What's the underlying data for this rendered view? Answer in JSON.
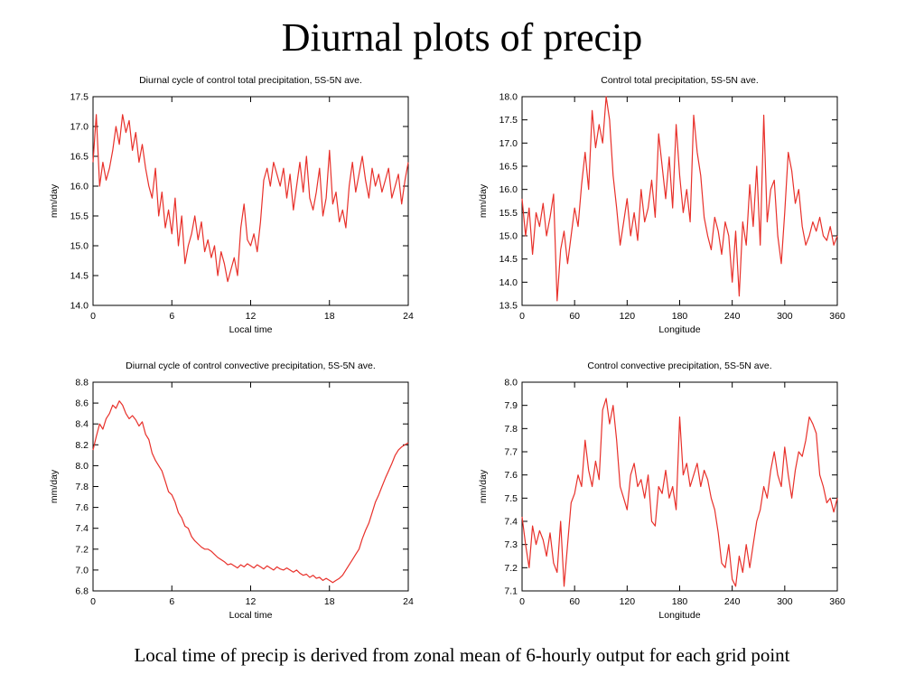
{
  "slide": {
    "title": "Diurnal plots of precip",
    "caption": "Local time of precip is derived from zonal mean of  6-hourly output for each grid point"
  },
  "colors": {
    "series": "#e8302a",
    "axis": "#000000"
  },
  "chart_data": [
    {
      "type": "line",
      "title": "Diurnal cycle of control total precipitation, 5S-5N ave.",
      "xlabel": "Local time",
      "ylabel": "mm/day",
      "xlim": [
        0,
        24
      ],
      "ylim": [
        14.0,
        17.5
      ],
      "xticks": [
        "0",
        "6",
        "12",
        "18",
        "24"
      ],
      "yticks": [
        "14.0",
        "14.5",
        "15.0",
        "15.5",
        "16.0",
        "16.5",
        "17.0",
        "17.5"
      ],
      "grid": false,
      "x": [
        0,
        0.25,
        0.5,
        0.75,
        1,
        1.25,
        1.5,
        1.75,
        2,
        2.25,
        2.5,
        2.75,
        3,
        3.25,
        3.5,
        3.75,
        4,
        4.25,
        4.5,
        4.75,
        5,
        5.25,
        5.5,
        5.75,
        6,
        6.25,
        6.5,
        6.75,
        7,
        7.25,
        7.5,
        7.75,
        8,
        8.25,
        8.5,
        8.75,
        9,
        9.25,
        9.5,
        9.75,
        10,
        10.25,
        10.5,
        10.75,
        11,
        11.25,
        11.5,
        11.75,
        12,
        12.25,
        12.5,
        12.75,
        13,
        13.25,
        13.5,
        13.75,
        14,
        14.25,
        14.5,
        14.75,
        15,
        15.25,
        15.5,
        15.75,
        16,
        16.25,
        16.5,
        16.75,
        17,
        17.25,
        17.5,
        17.75,
        18,
        18.25,
        18.5,
        18.75,
        19,
        19.25,
        19.5,
        19.75,
        20,
        20.25,
        20.5,
        20.75,
        21,
        21.25,
        21.5,
        21.75,
        22,
        22.25,
        22.5,
        22.75,
        23,
        23.25,
        23.5,
        23.75,
        24
      ],
      "values": [
        16.4,
        17.2,
        16.0,
        16.4,
        16.1,
        16.3,
        16.6,
        17.0,
        16.7,
        17.2,
        16.9,
        17.1,
        16.6,
        16.9,
        16.4,
        16.7,
        16.3,
        16.0,
        15.8,
        16.3,
        15.5,
        15.9,
        15.3,
        15.6,
        15.2,
        15.8,
        15.0,
        15.5,
        14.7,
        15.0,
        15.2,
        15.5,
        15.1,
        15.4,
        14.9,
        15.1,
        14.8,
        15.0,
        14.5,
        14.9,
        14.7,
        14.4,
        14.6,
        14.8,
        14.5,
        15.3,
        15.7,
        15.1,
        15.0,
        15.2,
        14.9,
        15.4,
        16.1,
        16.3,
        16.0,
        16.4,
        16.2,
        16.0,
        16.3,
        15.8,
        16.2,
        15.6,
        16.0,
        16.4,
        15.9,
        16.5,
        15.8,
        15.6,
        15.9,
        16.3,
        15.5,
        15.8,
        16.6,
        15.7,
        15.9,
        15.4,
        15.6,
        15.3,
        16.0,
        16.4,
        15.9,
        16.2,
        16.5,
        16.1,
        15.8,
        16.3,
        16.0,
        16.2,
        15.9,
        16.1,
        16.3,
        15.8,
        16.0,
        16.2,
        15.7,
        16.1,
        16.4
      ]
    },
    {
      "type": "line",
      "title": "Control total precipitation, 5S-5N ave.",
      "xlabel": "Longitude",
      "ylabel": "mm/day",
      "xlim": [
        0,
        360
      ],
      "ylim": [
        13.5,
        18.0
      ],
      "xticks": [
        "0",
        "60",
        "120",
        "180",
        "240",
        "300",
        "360"
      ],
      "yticks": [
        "13.5",
        "14.0",
        "14.5",
        "15.0",
        "15.5",
        "16.0",
        "16.5",
        "17.0",
        "17.5",
        "18.0"
      ],
      "grid": false,
      "x": [
        0,
        4,
        8,
        12,
        16,
        20,
        24,
        28,
        32,
        36,
        40,
        44,
        48,
        52,
        56,
        60,
        64,
        68,
        72,
        76,
        80,
        84,
        88,
        92,
        96,
        100,
        104,
        108,
        112,
        116,
        120,
        124,
        128,
        132,
        136,
        140,
        144,
        148,
        152,
        156,
        160,
        164,
        168,
        172,
        176,
        180,
        184,
        188,
        192,
        196,
        200,
        204,
        208,
        212,
        216,
        220,
        224,
        228,
        232,
        236,
        240,
        244,
        248,
        252,
        256,
        260,
        264,
        268,
        272,
        276,
        280,
        284,
        288,
        292,
        296,
        300,
        304,
        308,
        312,
        316,
        320,
        324,
        328,
        332,
        336,
        340,
        344,
        348,
        352,
        356,
        360
      ],
      "values": [
        15.8,
        15.0,
        15.6,
        14.6,
        15.5,
        15.2,
        15.7,
        15.0,
        15.4,
        15.9,
        13.6,
        14.7,
        15.1,
        14.4,
        15.0,
        15.6,
        15.2,
        16.1,
        16.8,
        16.0,
        17.7,
        16.9,
        17.4,
        17.0,
        18.0,
        17.5,
        16.3,
        15.6,
        14.8,
        15.3,
        15.8,
        15.0,
        15.5,
        14.9,
        16.0,
        15.3,
        15.6,
        16.2,
        15.4,
        17.2,
        16.5,
        15.8,
        16.7,
        15.6,
        17.4,
        16.3,
        15.5,
        16.0,
        15.3,
        17.6,
        16.8,
        16.3,
        15.4,
        15.0,
        14.7,
        15.4,
        15.1,
        14.6,
        15.3,
        15.0,
        14.0,
        15.1,
        13.7,
        15.3,
        14.8,
        16.1,
        15.2,
        16.5,
        14.8,
        17.6,
        15.3,
        16.0,
        16.2,
        15.0,
        14.4,
        15.5,
        16.8,
        16.4,
        15.7,
        16.0,
        15.2,
        14.8,
        15.0,
        15.3,
        15.1,
        15.4,
        15.0,
        14.9,
        15.2,
        14.8,
        15.0
      ]
    },
    {
      "type": "line",
      "title": "Diurnal cycle of control convective precipitation, 5S-5N ave.",
      "xlabel": "Local time",
      "ylabel": "mm/day",
      "xlim": [
        0,
        24
      ],
      "ylim": [
        6.8,
        8.8
      ],
      "xticks": [
        "0",
        "6",
        "12",
        "18",
        "24"
      ],
      "yticks": [
        "6.8",
        "7.0",
        "7.2",
        "7.4",
        "7.6",
        "7.8",
        "8.0",
        "8.2",
        "8.4",
        "8.6",
        "8.8"
      ],
      "grid": false,
      "x": [
        0,
        0.25,
        0.5,
        0.75,
        1,
        1.25,
        1.5,
        1.75,
        2,
        2.25,
        2.5,
        2.75,
        3,
        3.25,
        3.5,
        3.75,
        4,
        4.25,
        4.5,
        4.75,
        5,
        5.25,
        5.5,
        5.75,
        6,
        6.25,
        6.5,
        6.75,
        7,
        7.25,
        7.5,
        7.75,
        8,
        8.25,
        8.5,
        8.75,
        9,
        9.25,
        9.5,
        9.75,
        10,
        10.25,
        10.5,
        10.75,
        11,
        11.25,
        11.5,
        11.75,
        12,
        12.25,
        12.5,
        12.75,
        13,
        13.25,
        13.5,
        13.75,
        14,
        14.25,
        14.5,
        14.75,
        15,
        15.25,
        15.5,
        15.75,
        16,
        16.25,
        16.5,
        16.75,
        17,
        17.25,
        17.5,
        17.75,
        18,
        18.25,
        18.5,
        18.75,
        19,
        19.25,
        19.5,
        19.75,
        20,
        20.25,
        20.5,
        20.75,
        21,
        21.25,
        21.5,
        21.75,
        22,
        22.25,
        22.5,
        22.75,
        23,
        23.25,
        23.5,
        23.75,
        24
      ],
      "values": [
        8.15,
        8.28,
        8.4,
        8.35,
        8.45,
        8.5,
        8.58,
        8.55,
        8.62,
        8.58,
        8.5,
        8.45,
        8.48,
        8.44,
        8.38,
        8.42,
        8.3,
        8.25,
        8.12,
        8.05,
        8.0,
        7.95,
        7.85,
        7.75,
        7.72,
        7.65,
        7.55,
        7.5,
        7.42,
        7.4,
        7.32,
        7.28,
        7.25,
        7.22,
        7.2,
        7.2,
        7.18,
        7.15,
        7.12,
        7.1,
        7.08,
        7.05,
        7.06,
        7.04,
        7.02,
        7.05,
        7.03,
        7.06,
        7.04,
        7.02,
        7.05,
        7.03,
        7.01,
        7.04,
        7.02,
        7.0,
        7.03,
        7.01,
        7.0,
        7.02,
        7.0,
        6.98,
        7.0,
        6.97,
        6.95,
        6.96,
        6.93,
        6.95,
        6.92,
        6.93,
        6.9,
        6.92,
        6.9,
        6.88,
        6.9,
        6.92,
        6.95,
        7.0,
        7.05,
        7.1,
        7.15,
        7.2,
        7.3,
        7.38,
        7.45,
        7.55,
        7.65,
        7.72,
        7.8,
        7.88,
        7.95,
        8.02,
        8.1,
        8.15,
        8.18,
        8.2,
        8.22
      ]
    },
    {
      "type": "line",
      "title": "Control convective precipitation, 5S-5N ave.",
      "xlabel": "Longitude",
      "ylabel": "mm/day",
      "xlim": [
        0,
        360
      ],
      "ylim": [
        7.1,
        8.0
      ],
      "xticks": [
        "0",
        "60",
        "120",
        "180",
        "240",
        "300",
        "360"
      ],
      "yticks": [
        "7.1",
        "7.2",
        "7.3",
        "7.4",
        "7.5",
        "7.6",
        "7.7",
        "7.8",
        "7.9",
        "8.0"
      ],
      "grid": false,
      "x": [
        0,
        4,
        8,
        12,
        16,
        20,
        24,
        28,
        32,
        36,
        40,
        44,
        48,
        52,
        56,
        60,
        64,
        68,
        72,
        76,
        80,
        84,
        88,
        92,
        96,
        100,
        104,
        108,
        112,
        116,
        120,
        124,
        128,
        132,
        136,
        140,
        144,
        148,
        152,
        156,
        160,
        164,
        168,
        172,
        176,
        180,
        184,
        188,
        192,
        196,
        200,
        204,
        208,
        212,
        216,
        220,
        224,
        228,
        232,
        236,
        240,
        244,
        248,
        252,
        256,
        260,
        264,
        268,
        272,
        276,
        280,
        284,
        288,
        292,
        296,
        300,
        304,
        308,
        312,
        316,
        320,
        324,
        328,
        332,
        336,
        340,
        344,
        348,
        352,
        356,
        360
      ],
      "values": [
        7.42,
        7.3,
        7.2,
        7.38,
        7.3,
        7.36,
        7.32,
        7.25,
        7.35,
        7.22,
        7.18,
        7.4,
        7.12,
        7.3,
        7.48,
        7.52,
        7.6,
        7.55,
        7.75,
        7.62,
        7.55,
        7.66,
        7.58,
        7.88,
        7.93,
        7.82,
        7.9,
        7.75,
        7.55,
        7.5,
        7.45,
        7.6,
        7.65,
        7.55,
        7.58,
        7.5,
        7.6,
        7.4,
        7.38,
        7.55,
        7.52,
        7.62,
        7.5,
        7.55,
        7.45,
        7.85,
        7.6,
        7.65,
        7.55,
        7.6,
        7.65,
        7.55,
        7.62,
        7.58,
        7.5,
        7.45,
        7.35,
        7.22,
        7.2,
        7.3,
        7.15,
        7.12,
        7.25,
        7.18,
        7.3,
        7.2,
        7.3,
        7.4,
        7.45,
        7.55,
        7.5,
        7.62,
        7.7,
        7.6,
        7.55,
        7.72,
        7.6,
        7.5,
        7.62,
        7.7,
        7.68,
        7.75,
        7.85,
        7.82,
        7.78,
        7.6,
        7.55,
        7.48,
        7.5,
        7.44,
        7.5
      ]
    }
  ]
}
